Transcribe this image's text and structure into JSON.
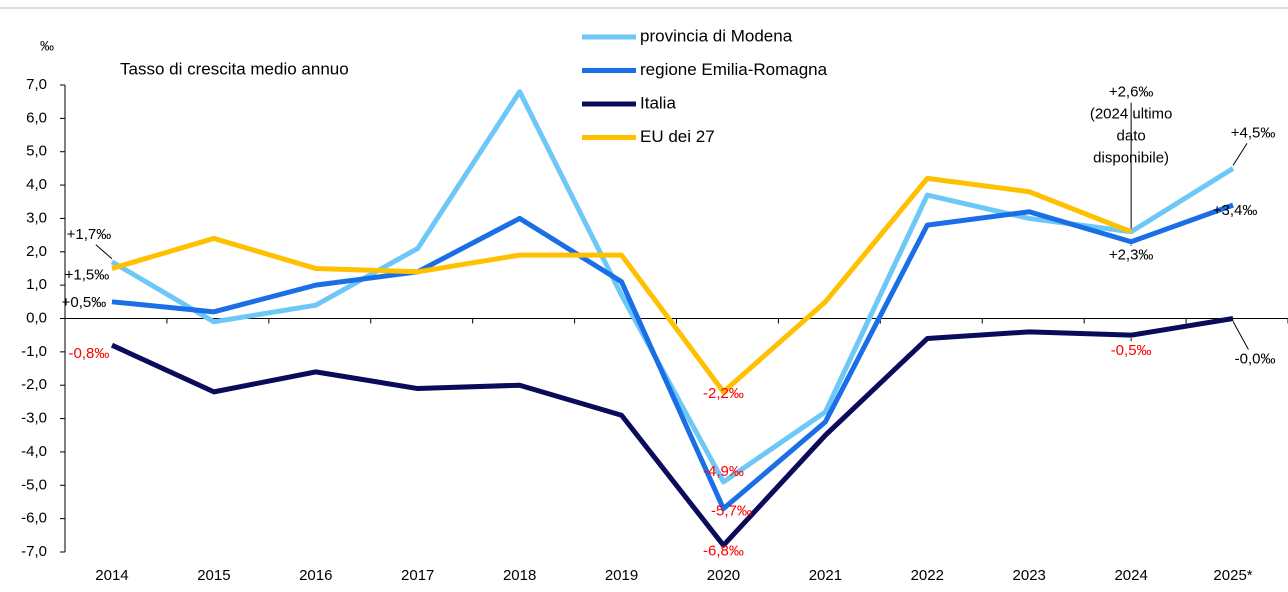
{
  "chart_data": {
    "type": "line",
    "unit": "‰",
    "subtitle": "Tasso di crescita medio annuo",
    "categories": [
      "2014",
      "2015",
      "2016",
      "2017",
      "2018",
      "2019",
      "2020",
      "2021",
      "2022",
      "2023",
      "2024",
      "2025*"
    ],
    "ylim": [
      -7,
      7
    ],
    "yticks": [
      {
        "value": 7,
        "label": "7,0"
      },
      {
        "value": 6,
        "label": "6,0"
      },
      {
        "value": 5,
        "label": "5,0"
      },
      {
        "value": 4,
        "label": "4,0"
      },
      {
        "value": 3,
        "label": "3,0"
      },
      {
        "value": 2,
        "label": "2,0"
      },
      {
        "value": 1,
        "label": "1,0"
      },
      {
        "value": 0,
        "label": "0,0"
      },
      {
        "value": -1,
        "label": "-1,0"
      },
      {
        "value": -2,
        "label": "-2,0"
      },
      {
        "value": -3,
        "label": "-3,0"
      },
      {
        "value": -4,
        "label": "-4,0"
      },
      {
        "value": -5,
        "label": "-5,0"
      },
      {
        "value": -6,
        "label": "-6,0"
      },
      {
        "value": -7,
        "label": "-7,0"
      }
    ],
    "negative_label_color": "#ff0000",
    "series": [
      {
        "name": "provincia di Modena",
        "color": "#6ec8f7",
        "values": [
          1.7,
          -0.1,
          0.4,
          2.1,
          6.8,
          0.7,
          -4.9,
          -2.8,
          3.7,
          3.0,
          2.6,
          4.5
        ],
        "value_labels": [
          "+1,7‰",
          null,
          null,
          null,
          null,
          null,
          "-4,9‰",
          null,
          null,
          null,
          null,
          "+4,5‰"
        ]
      },
      {
        "name": "regione Emilia-Romagna",
        "color": "#1a6fe6",
        "values": [
          0.5,
          0.2,
          1.0,
          1.4,
          3.0,
          1.1,
          -5.7,
          -3.1,
          2.8,
          3.2,
          2.3,
          3.4
        ],
        "value_labels": [
          "+0,5‰",
          null,
          null,
          null,
          null,
          null,
          "-5,7‰",
          null,
          null,
          null,
          "+2,3‰",
          "+3,4‰"
        ]
      },
      {
        "name": "Italia",
        "color": "#0b0b5c",
        "values": [
          -0.8,
          -2.2,
          -1.6,
          -2.1,
          -2.0,
          -2.9,
          -6.8,
          -3.5,
          -0.6,
          -0.4,
          -0.5,
          -0.0
        ],
        "value_labels": [
          "-0,8‰",
          null,
          null,
          null,
          null,
          null,
          "-6,8‰",
          null,
          null,
          null,
          "-0,5‰",
          "-0,0‰"
        ]
      },
      {
        "name": "EU dei 27",
        "color": "#ffc000",
        "values": [
          1.5,
          2.4,
          1.5,
          1.4,
          1.9,
          1.9,
          -2.2,
          0.5,
          4.2,
          3.8,
          2.6,
          null
        ],
        "value_labels": [
          "+1,5‰",
          null,
          null,
          null,
          null,
          null,
          "-2,2‰",
          null,
          null,
          null,
          "+2,6‰",
          null
        ]
      }
    ],
    "note": [
      "(2024 ultimo",
      "dato",
      "disponibile)"
    ]
  }
}
